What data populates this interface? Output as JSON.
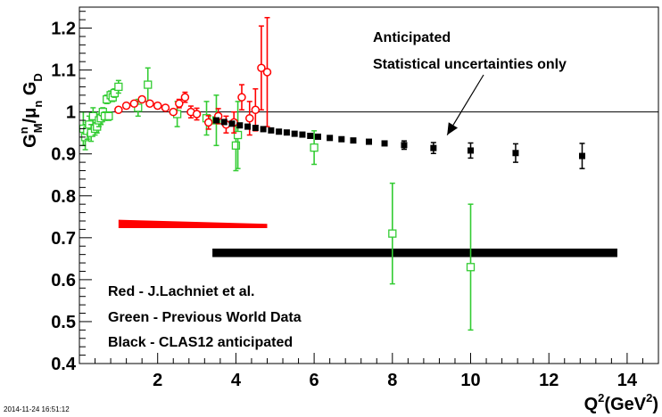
{
  "timestamp": "2014-11-24 16:51:12",
  "chart_data": {
    "type": "scatter",
    "xlabel_base": "Q",
    "xlabel_sup": "2",
    "xlabel_unit": "(GeV",
    "xlabel_unit_sup": "2",
    "xlabel_close": ")",
    "ylabel": "G^n_M/μ_n G_D",
    "xlim": [
      0,
      14.8
    ],
    "ylim": [
      0.4,
      1.25
    ],
    "xticks": [
      2,
      4,
      6,
      8,
      10,
      12,
      14
    ],
    "yticks": [
      0.4,
      0.5,
      0.6,
      0.7,
      0.8,
      0.9,
      1,
      1.1,
      1.2
    ],
    "xtick_labels": [
      "2",
      "4",
      "6",
      "8",
      "10",
      "12",
      "14"
    ],
    "ytick_labels": [
      "0.4",
      "0.5",
      "0.6",
      "0.7",
      "0.8",
      "0.9",
      "1",
      "1.1",
      "1.2"
    ],
    "reference_line_y": 1.0,
    "annotation": {
      "line1": "Anticipated",
      "line2": "Statistical uncertainties only",
      "arrow_to": [
        9.4,
        0.945
      ]
    },
    "legend": {
      "red": "Red - J.Lachniet et al.",
      "green": "Green - Previous World Data",
      "black": "Black - CLAS12 anticipated"
    },
    "series": [
      {
        "name": "Red - J.Lachniet et al.",
        "color": "#ff0000",
        "marker": "open-circle",
        "points": [
          [
            1.0,
            1.005,
            0.006
          ],
          [
            1.2,
            1.015,
            0.006
          ],
          [
            1.4,
            1.02,
            0.006
          ],
          [
            1.6,
            1.03,
            0.007
          ],
          [
            1.8,
            1.02,
            0.007
          ],
          [
            2.0,
            1.015,
            0.007
          ],
          [
            2.2,
            1.01,
            0.008
          ],
          [
            2.4,
            1.0,
            0.008
          ],
          [
            2.55,
            1.02,
            0.01
          ],
          [
            2.7,
            1.035,
            0.012
          ],
          [
            2.85,
            1.0,
            0.014
          ],
          [
            3.0,
            0.995,
            0.014
          ],
          [
            3.3,
            0.975,
            0.016
          ],
          [
            3.55,
            0.99,
            0.018
          ],
          [
            3.75,
            0.97,
            0.02
          ],
          [
            3.95,
            0.975,
            0.025
          ],
          [
            4.15,
            1.035,
            0.03
          ],
          [
            4.35,
            0.985,
            0.04
          ],
          [
            4.5,
            1.005,
            0.05
          ],
          [
            4.65,
            1.105,
            0.1
          ],
          [
            4.8,
            1.095,
            0.13
          ]
        ]
      },
      {
        "name": "Green - Previous World Data",
        "color": "#33cc33",
        "marker": "open-square",
        "points": [
          [
            0.1,
            0.96,
            0.04
          ],
          [
            0.15,
            0.94,
            0.03
          ],
          [
            0.2,
            0.955,
            0.02
          ],
          [
            0.25,
            0.97,
            0.02
          ],
          [
            0.3,
            0.95,
            0.02
          ],
          [
            0.35,
            0.99,
            0.02
          ],
          [
            0.4,
            0.96,
            0.015
          ],
          [
            0.45,
            0.965,
            0.015
          ],
          [
            0.5,
            0.98,
            0.015
          ],
          [
            0.55,
            0.985,
            0.015
          ],
          [
            0.6,
            1.0,
            0.01
          ],
          [
            0.65,
            0.99,
            0.01
          ],
          [
            0.7,
            1.03,
            0.01
          ],
          [
            0.75,
            0.99,
            0.01
          ],
          [
            0.8,
            1.04,
            0.01
          ],
          [
            0.85,
            1.035,
            0.01
          ],
          [
            0.9,
            1.045,
            0.01
          ],
          [
            1.0,
            1.06,
            0.015
          ],
          [
            1.5,
            1.01,
            0.02
          ],
          [
            1.75,
            1.065,
            0.04
          ],
          [
            2.5,
            0.995,
            0.03
          ],
          [
            3.25,
            0.985,
            0.04
          ],
          [
            3.5,
            0.98,
            0.06
          ],
          [
            4.0,
            0.92,
            0.06
          ],
          [
            4.05,
            0.945,
            0.08
          ],
          [
            6.0,
            0.915,
            0.04
          ],
          [
            8.0,
            0.71,
            0.12
          ],
          [
            10.0,
            0.63,
            0.15
          ]
        ]
      },
      {
        "name": "Black - CLAS12 anticipated",
        "color": "#000000",
        "marker": "filled-square",
        "points": [
          [
            3.5,
            0.98,
            0.001
          ],
          [
            3.7,
            0.976,
            0.001
          ],
          [
            3.9,
            0.972,
            0.001
          ],
          [
            4.1,
            0.968,
            0.001
          ],
          [
            4.3,
            0.965,
            0.001
          ],
          [
            4.5,
            0.962,
            0.002
          ],
          [
            4.7,
            0.959,
            0.002
          ],
          [
            4.9,
            0.956,
            0.002
          ],
          [
            5.1,
            0.953,
            0.002
          ],
          [
            5.3,
            0.951,
            0.003
          ],
          [
            5.5,
            0.948,
            0.003
          ],
          [
            5.7,
            0.946,
            0.003
          ],
          [
            5.9,
            0.943,
            0.003
          ],
          [
            6.1,
            0.941,
            0.004
          ],
          [
            6.4,
            0.938,
            0.004
          ],
          [
            6.7,
            0.935,
            0.005
          ],
          [
            7.0,
            0.932,
            0.006
          ],
          [
            7.4,
            0.929,
            0.007
          ],
          [
            7.8,
            0.925,
            0.008
          ],
          [
            8.3,
            0.921,
            0.01
          ],
          [
            9.05,
            0.914,
            0.013
          ],
          [
            10.0,
            0.908,
            0.018
          ],
          [
            11.15,
            0.902,
            0.022
          ],
          [
            12.85,
            0.895,
            0.03
          ]
        ]
      }
    ],
    "systematic_bands": [
      {
        "name": "red-systematic-band",
        "color": "#ff0000",
        "x": [
          1.0,
          4.8
        ],
        "y_top": [
          0.743,
          0.733
        ],
        "y_bottom": [
          0.723,
          0.723
        ]
      },
      {
        "name": "black-systematic-band",
        "color": "#000000",
        "x": [
          3.4,
          13.75
        ],
        "y_top": [
          0.674,
          0.674
        ],
        "y_bottom": [
          0.654,
          0.654
        ]
      }
    ]
  }
}
